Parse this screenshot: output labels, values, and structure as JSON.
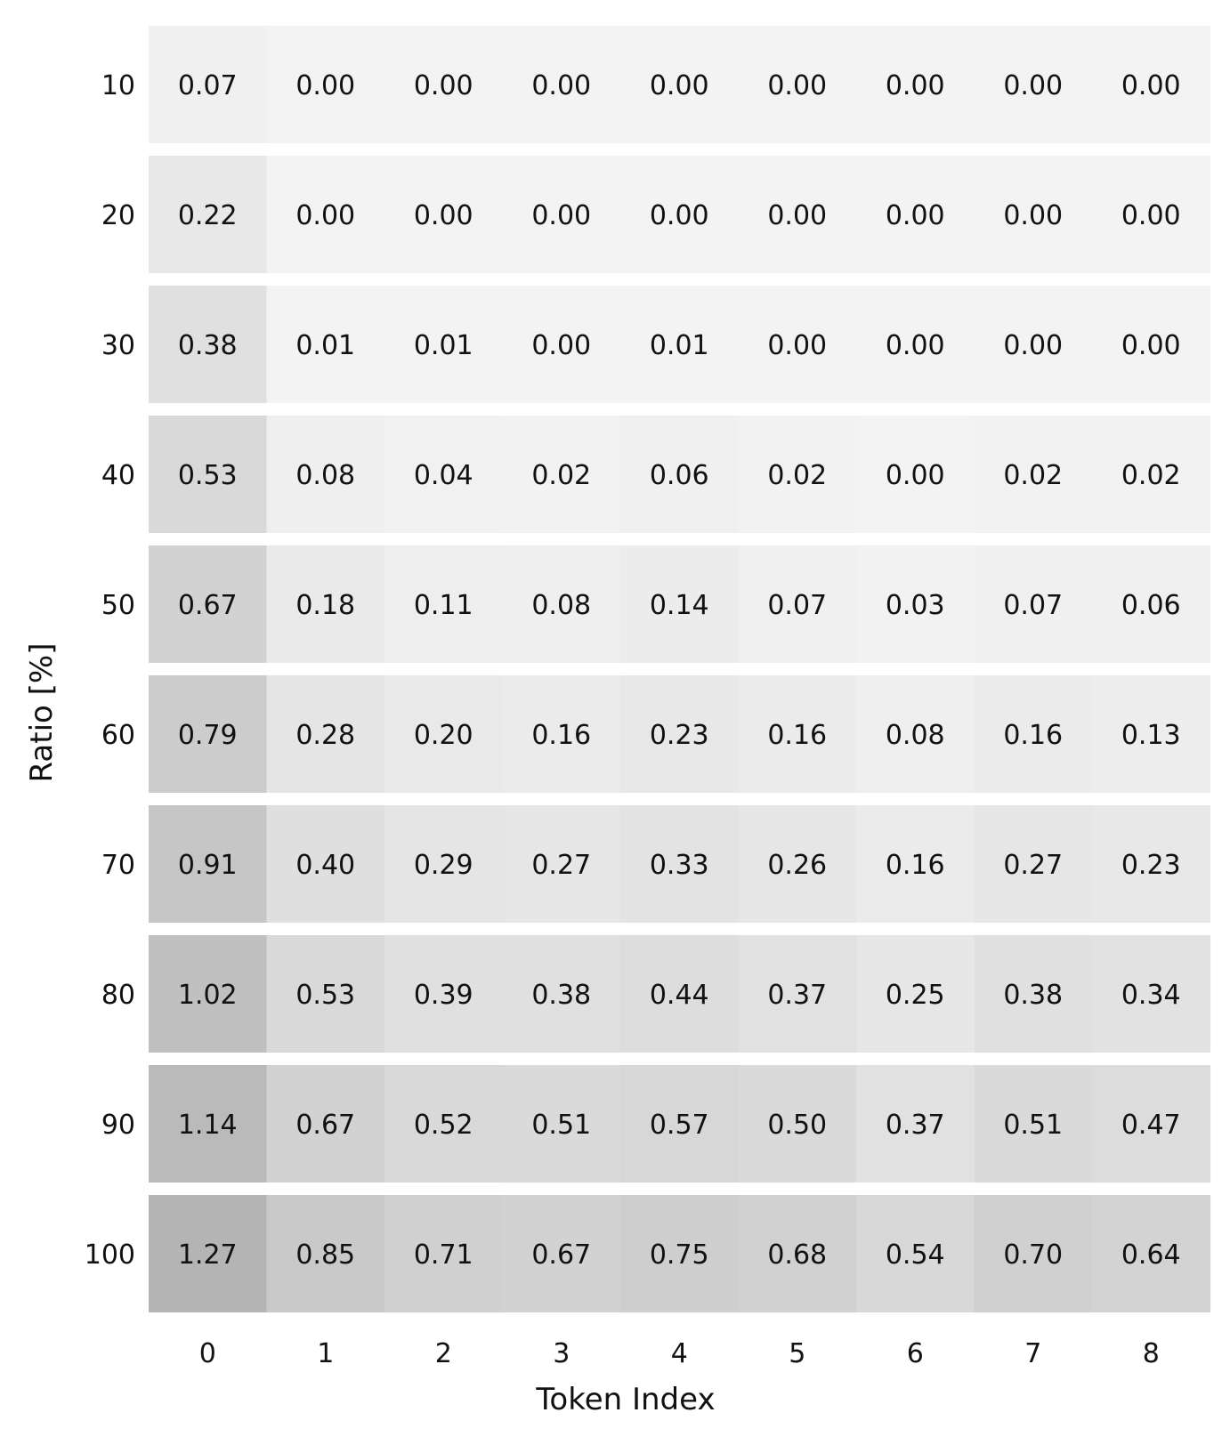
{
  "chart_data": {
    "type": "heatmap",
    "title": "",
    "xlabel": "Token Index",
    "ylabel": "Ratio [%]",
    "x_categories": [
      "0",
      "1",
      "2",
      "3",
      "4",
      "5",
      "6",
      "7",
      "8"
    ],
    "y_categories": [
      "10",
      "20",
      "30",
      "40",
      "50",
      "60",
      "70",
      "80",
      "90",
      "100"
    ],
    "values": [
      [
        0.07,
        0.0,
        0.0,
        0.0,
        0.0,
        0.0,
        0.0,
        0.0,
        0.0
      ],
      [
        0.22,
        0.0,
        0.0,
        0.0,
        0.0,
        0.0,
        0.0,
        0.0,
        0.0
      ],
      [
        0.38,
        0.01,
        0.01,
        0.0,
        0.01,
        0.0,
        0.0,
        0.0,
        0.0
      ],
      [
        0.53,
        0.08,
        0.04,
        0.02,
        0.06,
        0.02,
        0.0,
        0.02,
        0.02
      ],
      [
        0.67,
        0.18,
        0.11,
        0.08,
        0.14,
        0.07,
        0.03,
        0.07,
        0.06
      ],
      [
        0.79,
        0.28,
        0.2,
        0.16,
        0.23,
        0.16,
        0.08,
        0.16,
        0.13
      ],
      [
        0.91,
        0.4,
        0.29,
        0.27,
        0.33,
        0.26,
        0.16,
        0.27,
        0.23
      ],
      [
        1.02,
        0.53,
        0.39,
        0.38,
        0.44,
        0.37,
        0.25,
        0.38,
        0.34
      ],
      [
        1.14,
        0.67,
        0.52,
        0.51,
        0.57,
        0.5,
        0.37,
        0.51,
        0.47
      ],
      [
        1.27,
        0.85,
        0.71,
        0.67,
        0.75,
        0.68,
        0.54,
        0.7,
        0.64
      ]
    ],
    "value_format": "2 decimals",
    "colormap": {
      "low": "#f3f3f3",
      "high": "#b4b4b4"
    },
    "grid": false,
    "legend": "none"
  }
}
